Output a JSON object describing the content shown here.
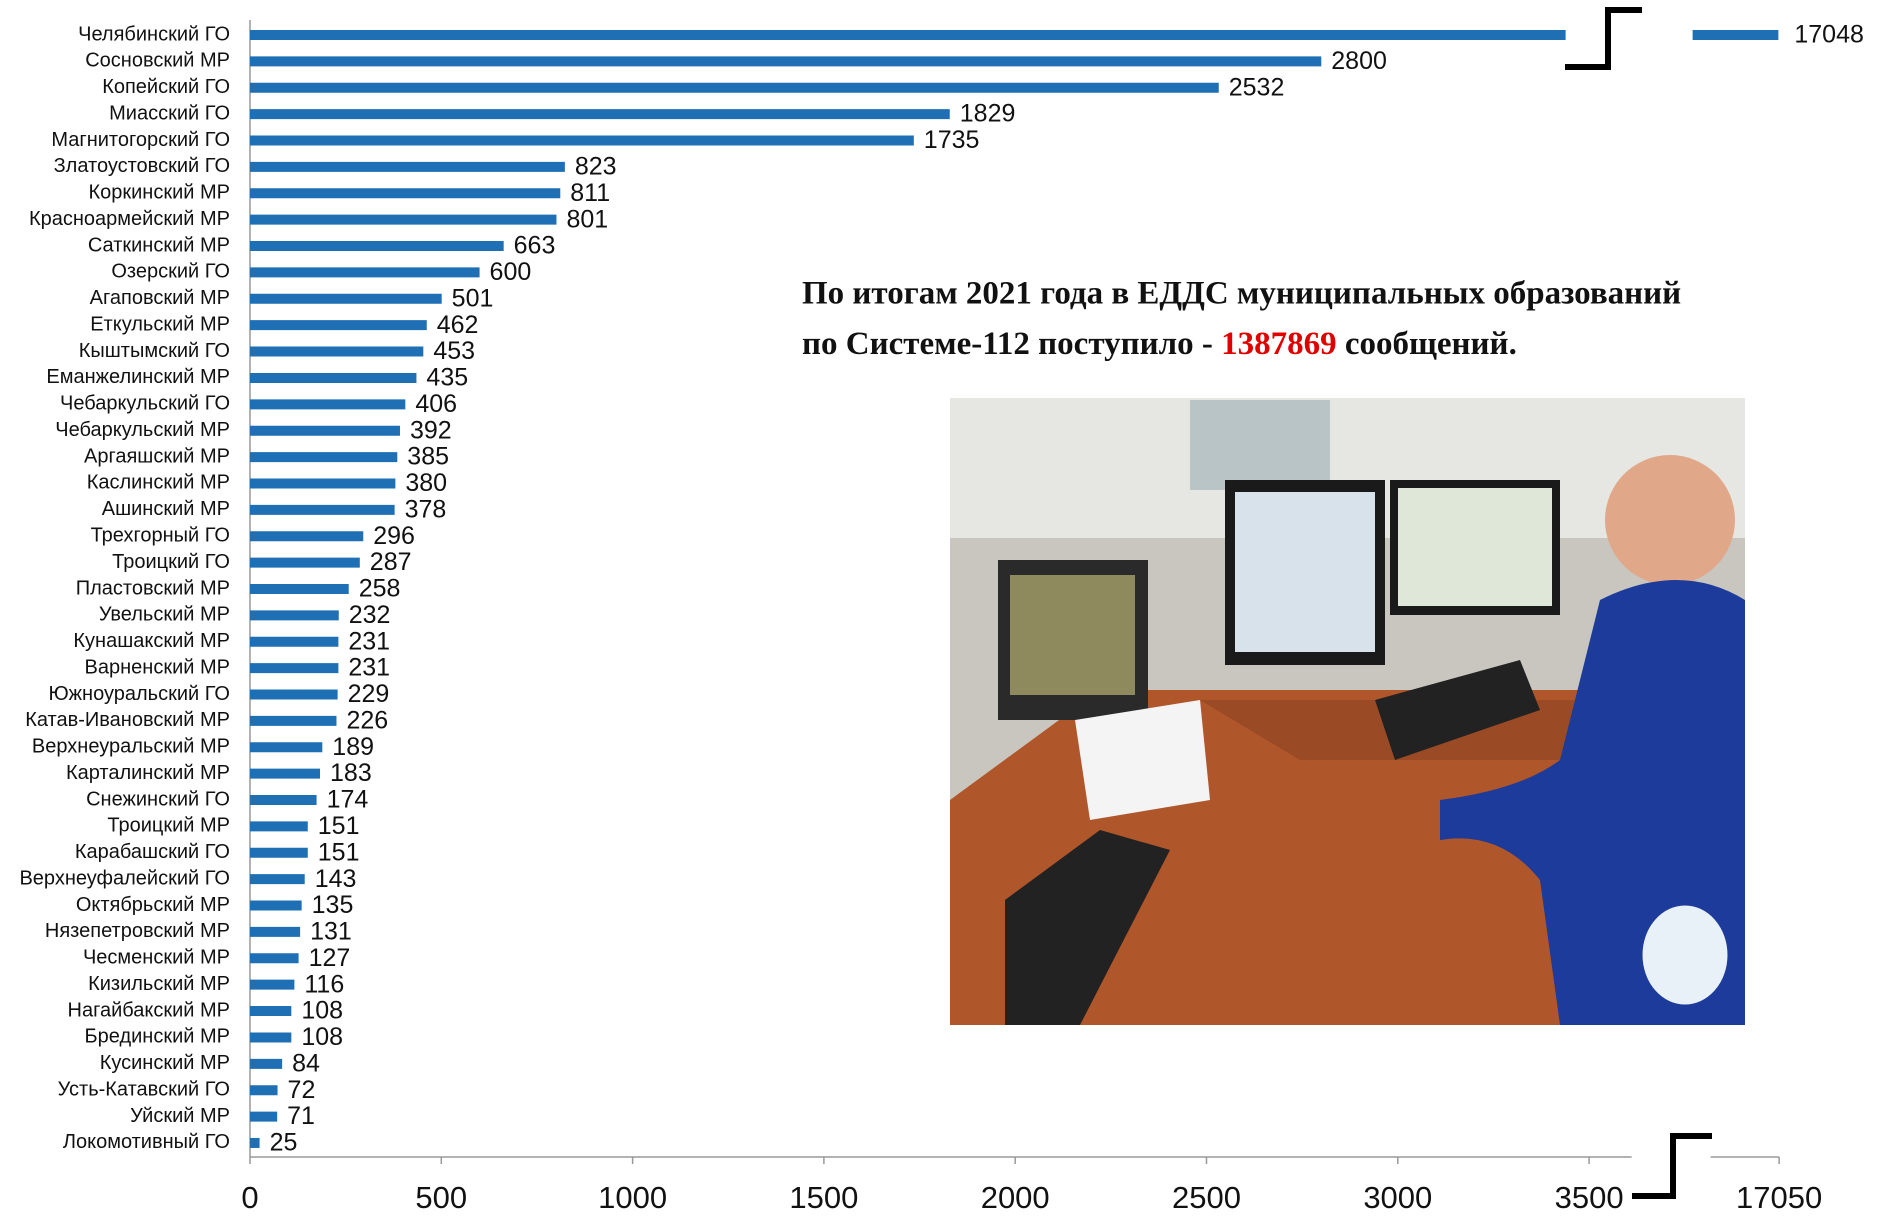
{
  "chart_data": {
    "type": "barh",
    "categories": [
      "Челябинский ГО",
      "Сосновский МР",
      "Копейский ГО",
      "Миасский ГО",
      "Магнитогорский ГО",
      "Златоустовский ГО",
      "Коркинский МР",
      "Красноармейский МР",
      "Саткинский МР",
      "Озерский ГО",
      "Агаповский МР",
      "Еткульский МР",
      "Кыштымский ГО",
      "Еманжелинский МР",
      "Чебаркульский ГО",
      "Чебаркульский МР",
      "Аргаяшский МР",
      "Каслинский МР",
      "Ашинский МР",
      "Трехгорный ГО",
      "Троицкий ГО",
      "Пластовский МР",
      "Увельский МР",
      "Кунашакский МР",
      "Варненский МР",
      "Южноуральский ГО",
      "Катав-Ивановский МР",
      "Верхнеуральский МР",
      "Карталинский МР",
      "Снежинский ГО",
      "Троицкий МР",
      "Карабашский ГО",
      "Верхнеуфалейский ГО",
      "Октябрьский МР",
      "Нязепетровский МР",
      "Чесменский МР",
      "Кизильский МР",
      "Нагайбакский МР",
      "Брединский МР",
      "Кусинский МР",
      "Усть-Катавский ГО",
      "Уйский МР",
      "Локомотивный ГО"
    ],
    "values": [
      17048,
      2800,
      2532,
      1829,
      1735,
      823,
      811,
      801,
      663,
      600,
      501,
      462,
      453,
      435,
      406,
      392,
      385,
      380,
      378,
      296,
      287,
      258,
      232,
      231,
      231,
      229,
      226,
      189,
      183,
      174,
      151,
      151,
      143,
      135,
      131,
      127,
      116,
      108,
      108,
      84,
      72,
      71,
      25
    ],
    "color": "#1f6fb5",
    "xlim": [
      0,
      17050
    ],
    "xbreak": [
      3700,
      16850
    ],
    "xticks": [
      0,
      500,
      1000,
      1500,
      2000,
      2500,
      3000,
      3500,
      17050
    ],
    "annotation": {
      "before": "По итогам 2021 года в ЕДДС муниципальных образований",
      "line2": "по Системе-112 поступило  -",
      "number": 1387869,
      "after": "сообщений."
    }
  }
}
